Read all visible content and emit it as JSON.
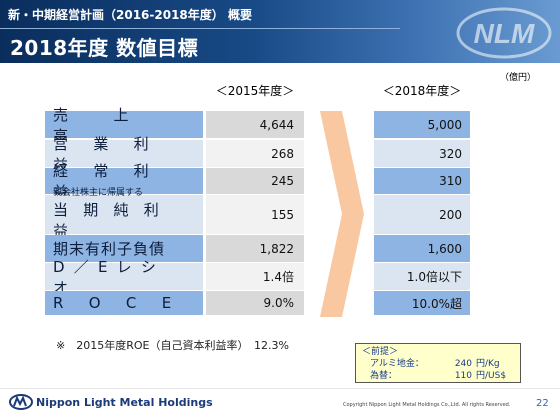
{
  "header": {
    "subtitle": "新・中期経営計画（2016-2018年度） 概要",
    "title": "2018年度 数値目標",
    "watermark": "NLM"
  },
  "table": {
    "unit": "（億円）",
    "col_2015": "＜2015年度＞",
    "col_2018": "＜2018年度＞",
    "rows": [
      {
        "label": "売上高",
        "chars": [
          "売",
          "上",
          "高"
        ],
        "v2015": "4,644",
        "v2018": "5,000"
      },
      {
        "label": "営業利益",
        "chars": [
          "営",
          "業",
          "利",
          "益"
        ],
        "v2015": "268",
        "v2018": "320"
      },
      {
        "label": "経常利益",
        "chars": [
          "経",
          "常",
          "利",
          "益"
        ],
        "v2015": "245",
        "v2018": "310"
      },
      {
        "label_top": "親会社株主に帰属する",
        "label": "当期純利益",
        "chars": [
          "当",
          "期",
          "純",
          "利",
          "益"
        ],
        "v2015": "155",
        "v2018": "200"
      },
      {
        "label": "期末有利子負債",
        "v2015": "1,822",
        "v2018": "1,600"
      },
      {
        "label": "D／Eレシオ",
        "chars": [
          "D",
          "／",
          "E",
          "レ",
          "シ",
          "オ"
        ],
        "v2015": "1.4倍",
        "v2018": "1.0倍以下"
      },
      {
        "label": "ROCE",
        "chars": [
          "R",
          "O",
          "C",
          "E"
        ],
        "v2015": "9.0%",
        "v2018": "10.0%超"
      }
    ]
  },
  "note": "※　2015年度ROE（自己資本利益率）　12.3%",
  "premise": {
    "title": "＜前提＞",
    "items": [
      {
        "key": "アルミ地金：",
        "value": "240",
        "unit": "円/Kg"
      },
      {
        "key": "為替：",
        "value": "110",
        "unit": "円/US$"
      }
    ]
  },
  "footer": {
    "brand": "Nippon Light Metal Holdings",
    "copyright": "Copyright Nippon Light Metal Holdings Co.,Ltd. All rights Reserved.",
    "page": "22"
  },
  "colors": {
    "header_dark": "#0a2d5c",
    "row_blue": "#8db4e2",
    "row_light": "#dbe5f1",
    "arrow": "#f9c8a0",
    "premise_bg": "#ffffcc"
  }
}
